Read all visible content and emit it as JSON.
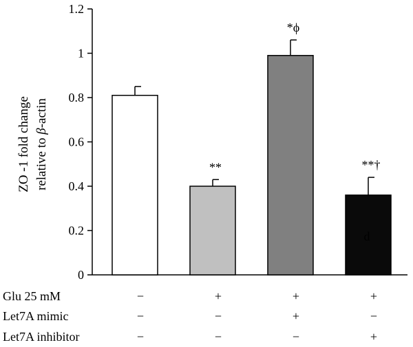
{
  "chart_data": {
    "type": "bar",
    "title": "",
    "ylabel_line1": "ZO -1 fold change",
    "ylabel_line2_prefix": "relative to ",
    "ylabel_line2_greek": "β",
    "ylabel_line2_suffix": "-actin",
    "ylim": [
      0,
      1.2
    ],
    "yticks": [
      0,
      0.2,
      0.4,
      0.6,
      0.8,
      1,
      1.2
    ],
    "ytick_labels": [
      "0",
      "0.2",
      "0.4",
      "0.6",
      "0.8",
      "1",
      "1.2"
    ],
    "bars": [
      {
        "value": 0.81,
        "error": 0.04,
        "fill": "#ffffff",
        "annotation": ""
      },
      {
        "value": 0.4,
        "error": 0.03,
        "fill": "#c0c0c0",
        "annotation": "**"
      },
      {
        "value": 0.99,
        "error": 0.07,
        "fill": "#808080",
        "annotation": "*ϕ"
      },
      {
        "value": 0.36,
        "error": 0.08,
        "fill": "#0a0a0a",
        "annotation": "**†"
      }
    ],
    "conditions": [
      {
        "label": "Glu 25 mM",
        "values": [
          "−",
          "+",
          "+",
          "+"
        ]
      },
      {
        "label": "Let7A mimic",
        "values": [
          "−",
          "−",
          "+",
          "−"
        ]
      },
      {
        "label": "Let7A inhibitor",
        "values": [
          "−",
          "−",
          "−",
          "+"
        ]
      }
    ],
    "inner_mark": "d",
    "grid": false,
    "legend": "none"
  }
}
